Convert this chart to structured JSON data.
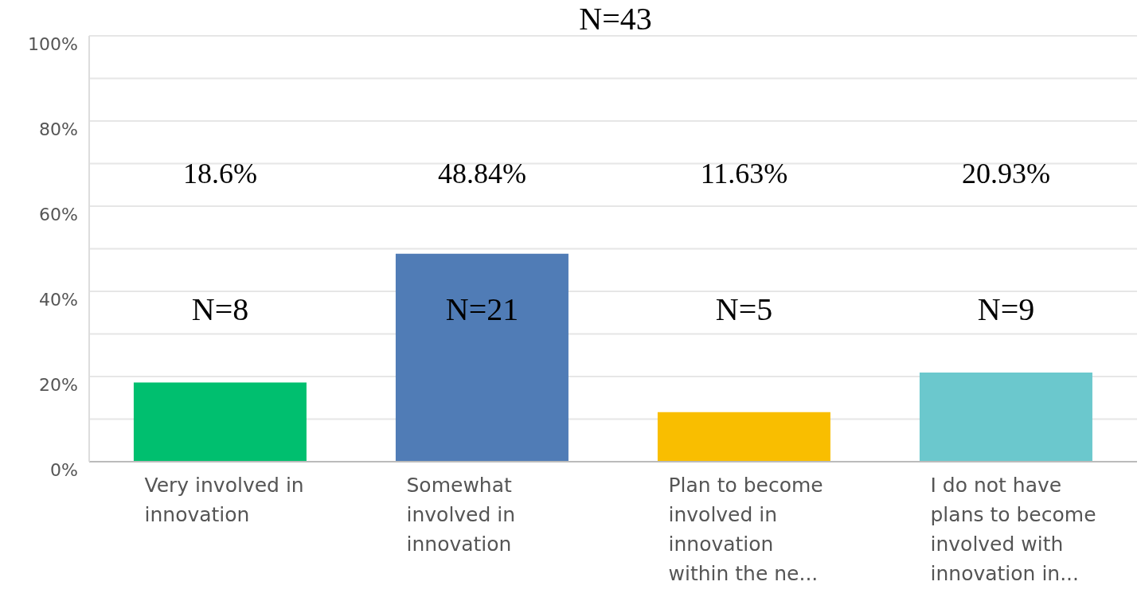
{
  "chart_data": {
    "type": "bar",
    "title": "N=43",
    "categories": [
      "Very involved in innovation",
      "Somewhat involved in innovation",
      "Plan to become involved in innovation within the ne...",
      "I do not have plans to become involved with innovation in..."
    ],
    "values": [
      18.6,
      48.84,
      11.63,
      20.93
    ],
    "colors": [
      "#00bf6f",
      "#507cb6",
      "#f9be00",
      "#6bc8cd"
    ],
    "annotations": [
      "18.6%",
      "48.84%",
      "11.63%",
      "20.93%",
      "N=8",
      "N=21",
      "N=5",
      "N=9"
    ],
    "ylim": [
      0,
      100
    ],
    "yticks": [
      {
        "value": 0,
        "label": "0%"
      },
      {
        "value": 10,
        "label": null
      },
      {
        "value": 20,
        "label": "20%"
      },
      {
        "value": 30,
        "label": null
      },
      {
        "value": 40,
        "label": "40%"
      },
      {
        "value": 50,
        "label": null
      },
      {
        "value": 60,
        "label": "60%"
      },
      {
        "value": 70,
        "label": null
      },
      {
        "value": 80,
        "label": "80%"
      },
      {
        "value": 90,
        "label": null
      },
      {
        "value": 100,
        "label": "100%"
      }
    ],
    "grid": "y",
    "legend": false
  }
}
